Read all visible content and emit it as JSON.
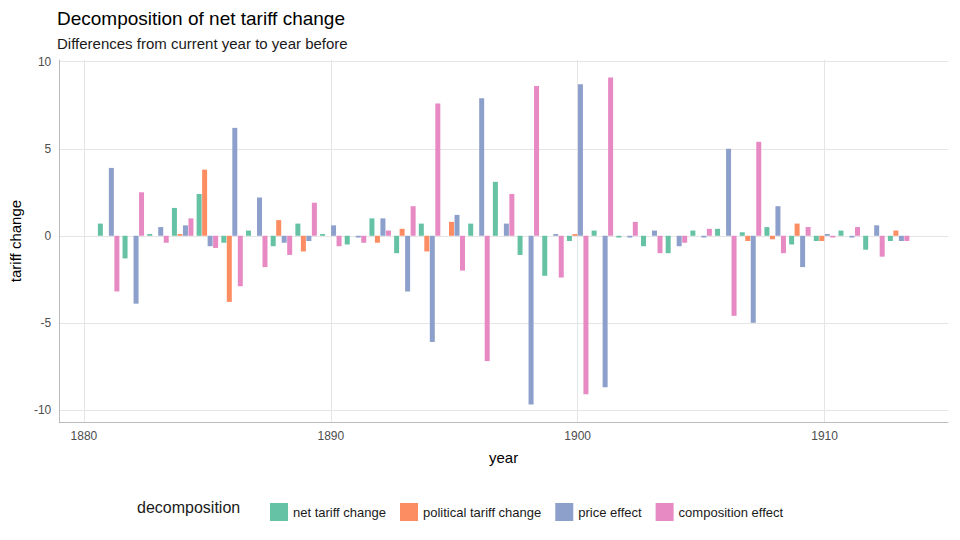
{
  "chart_data": {
    "type": "bar",
    "title": "Decomposition of net tariff change",
    "subtitle": "Differences from current year to year before",
    "x_label": "year",
    "y_label": "tariff change",
    "legend_title": "decomposition",
    "legend": "bottom",
    "grid": true,
    "x": [
      1881,
      1882,
      1883,
      1884,
      1885,
      1886,
      1887,
      1888,
      1889,
      1890,
      1891,
      1892,
      1893,
      1894,
      1895,
      1896,
      1897,
      1898,
      1899,
      1900,
      1901,
      1902,
      1903,
      1904,
      1905,
      1906,
      1907,
      1908,
      1909,
      1910,
      1911,
      1912,
      1913
    ],
    "xlim": [
      1879,
      1915
    ],
    "xticks": [
      1880,
      1890,
      1900,
      1910
    ],
    "ylim": [
      -10.7,
      10.1
    ],
    "yticks": [
      -10,
      -5,
      0,
      5,
      10
    ],
    "series": [
      {
        "name": "net tariff change",
        "color": "#66c2a5",
        "values": [
          0.7,
          -1.3,
          0.1,
          1.6,
          2.4,
          -0.4,
          0.3,
          -0.6,
          0.7,
          0.1,
          -0.5,
          1.0,
          -1.0,
          0.7,
          0,
          0.7,
          3.1,
          -1.1,
          -2.3,
          -0.3,
          0.3,
          -0.1,
          -0.6,
          -1.0,
          0.3,
          0.4,
          0.2,
          0.5,
          -0.5,
          -0.3,
          0.3,
          -0.8,
          -0.3
        ]
      },
      {
        "name": "political tariff change",
        "color": "#fc8d62",
        "values": [
          0,
          0,
          0,
          0.1,
          3.8,
          -3.8,
          0,
          0.9,
          -0.9,
          0,
          0,
          -0.4,
          0.4,
          -0.9,
          0.8,
          0,
          0,
          0,
          0,
          0.1,
          0,
          0,
          0,
          0,
          0,
          0,
          -0.3,
          -0.2,
          0.7,
          -0.3,
          0,
          0,
          0.3
        ]
      },
      {
        "name": "price effect",
        "color": "#8da0cb",
        "values": [
          3.9,
          -3.9,
          0.5,
          0.6,
          -0.6,
          6.2,
          2.2,
          -0.4,
          -0.3,
          0.6,
          -0.1,
          1.0,
          -3.2,
          -6.1,
          1.2,
          7.9,
          0.7,
          -9.7,
          0.1,
          8.7,
          -8.7,
          -0.1,
          0.3,
          -0.6,
          -0.1,
          5.0,
          -5.0,
          1.7,
          -1.8,
          0.1,
          -0.1,
          0.6,
          -0.3
        ]
      },
      {
        "name": "composition effect",
        "color": "#e78ac3",
        "values": [
          -3.2,
          2.5,
          -0.4,
          1.0,
          -0.7,
          -2.9,
          -1.8,
          -1.1,
          1.9,
          -0.6,
          -0.4,
          0.3,
          1.7,
          7.6,
          -2.0,
          -7.2,
          2.4,
          8.6,
          -2.4,
          -9.1,
          9.1,
          0.8,
          -1.0,
          -0.4,
          0.4,
          -4.6,
          5.4,
          -1.0,
          0.5,
          -0.1,
          0.5,
          -1.2,
          -0.3
        ]
      }
    ]
  }
}
